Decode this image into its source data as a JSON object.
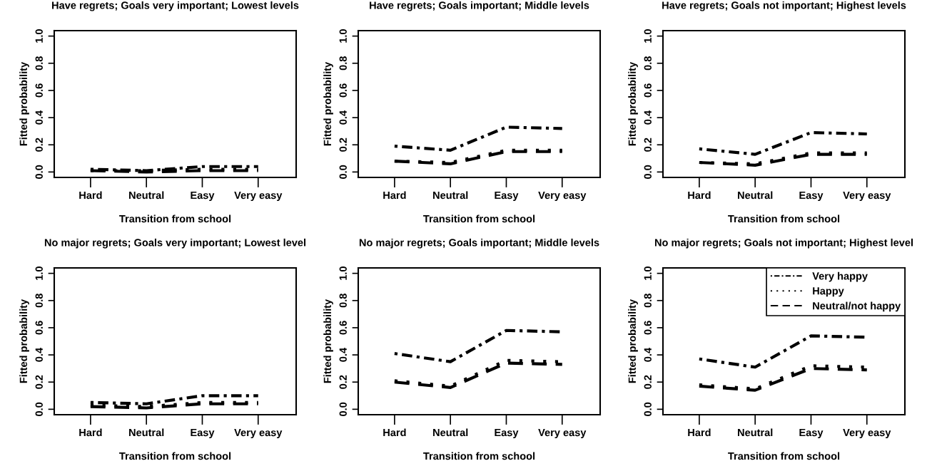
{
  "chart_data": [
    {
      "type": "line",
      "title": "Have regrets; Goals very important; Lowest levels",
      "xlabel": "Transition from school",
      "ylabel": "Fitted probability",
      "categories": [
        "Hard",
        "Neutral",
        "Easy",
        "Very easy"
      ],
      "ylim": [
        -0.04,
        1.04
      ],
      "yticks": [
        {
          "value": 0,
          "label": "0.0"
        },
        {
          "value": 0.2,
          "label": "0.2"
        },
        {
          "value": 0.4,
          "label": "0.4"
        },
        {
          "value": 0.6,
          "label": "0.6"
        },
        {
          "value": 0.8,
          "label": "0.8"
        },
        {
          "value": 1,
          "label": "1.0"
        }
      ],
      "grid": false,
      "legend": false,
      "series": [
        {
          "color": "#000000",
          "line_style": "dashdot",
          "values": [
            0.02,
            0.01,
            0.04,
            0.04
          ]
        },
        {
          "color": "#000000",
          "line_style": "dotted",
          "values": [
            0.01,
            0.01,
            0.02,
            0.02
          ]
        },
        {
          "color": "#000000",
          "line_style": "dashed",
          "values": [
            0.01,
            0.0,
            0.01,
            0.01
          ]
        }
      ]
    },
    {
      "type": "line",
      "title": "Have regrets; Goals important; Middle levels",
      "xlabel": "Transition from school",
      "ylabel": "Fitted probability",
      "categories": [
        "Hard",
        "Neutral",
        "Easy",
        "Very easy"
      ],
      "ylim": [
        -0.04,
        1.04
      ],
      "yticks": [
        {
          "value": 0,
          "label": "0.0"
        },
        {
          "value": 0.2,
          "label": "0.2"
        },
        {
          "value": 0.4,
          "label": "0.4"
        },
        {
          "value": 0.6,
          "label": "0.6"
        },
        {
          "value": 0.8,
          "label": "0.8"
        },
        {
          "value": 1,
          "label": "1.0"
        }
      ],
      "grid": false,
      "legend": false,
      "series": [
        {
          "color": "#000000",
          "line_style": "dashdot",
          "values": [
            0.19,
            0.16,
            0.33,
            0.32
          ]
        },
        {
          "color": "#000000",
          "line_style": "dotted",
          "values": [
            0.08,
            0.07,
            0.16,
            0.16
          ]
        },
        {
          "color": "#000000",
          "line_style": "dashed",
          "values": [
            0.08,
            0.06,
            0.15,
            0.15
          ]
        }
      ]
    },
    {
      "type": "line",
      "title": "Have regrets; Goals not important; Highest levels",
      "xlabel": "Transition from school",
      "ylabel": "Fitted probability",
      "categories": [
        "Hard",
        "Neutral",
        "Easy",
        "Very easy"
      ],
      "ylim": [
        -0.04,
        1.04
      ],
      "yticks": [
        {
          "value": 0,
          "label": "0.0"
        },
        {
          "value": 0.2,
          "label": "0.2"
        },
        {
          "value": 0.4,
          "label": "0.4"
        },
        {
          "value": 0.6,
          "label": "0.6"
        },
        {
          "value": 0.8,
          "label": "0.8"
        },
        {
          "value": 1,
          "label": "1.0"
        }
      ],
      "grid": false,
      "legend": false,
      "series": [
        {
          "color": "#000000",
          "line_style": "dashdot",
          "values": [
            0.17,
            0.13,
            0.29,
            0.28
          ]
        },
        {
          "color": "#000000",
          "line_style": "dotted",
          "values": [
            0.07,
            0.06,
            0.14,
            0.14
          ]
        },
        {
          "color": "#000000",
          "line_style": "dashed",
          "values": [
            0.07,
            0.05,
            0.13,
            0.13
          ]
        }
      ]
    },
    {
      "type": "line",
      "title": "No major regrets; Goals very important; Lowest level",
      "xlabel": "Transition from school",
      "ylabel": "Fitted probability",
      "categories": [
        "Hard",
        "Neutral",
        "Easy",
        "Very easy"
      ],
      "ylim": [
        -0.04,
        1.04
      ],
      "yticks": [
        {
          "value": 0,
          "label": "0.0"
        },
        {
          "value": 0.2,
          "label": "0.2"
        },
        {
          "value": 0.4,
          "label": "0.4"
        },
        {
          "value": 0.6,
          "label": "0.6"
        },
        {
          "value": 0.8,
          "label": "0.8"
        },
        {
          "value": 1,
          "label": "1.0"
        }
      ],
      "grid": false,
      "legend": false,
      "series": [
        {
          "color": "#000000",
          "line_style": "dashdot",
          "values": [
            0.05,
            0.04,
            0.1,
            0.1
          ]
        },
        {
          "color": "#000000",
          "line_style": "dotted",
          "values": [
            0.03,
            0.02,
            0.05,
            0.05
          ]
        },
        {
          "color": "#000000",
          "line_style": "dashed",
          "values": [
            0.02,
            0.01,
            0.04,
            0.04
          ]
        }
      ]
    },
    {
      "type": "line",
      "title": "No major regrets; Goals important; Middle levels",
      "xlabel": "Transition from school",
      "ylabel": "Fitted probability",
      "categories": [
        "Hard",
        "Neutral",
        "Easy",
        "Very easy"
      ],
      "ylim": [
        -0.04,
        1.04
      ],
      "yticks": [
        {
          "value": 0,
          "label": "0.0"
        },
        {
          "value": 0.2,
          "label": "0.2"
        },
        {
          "value": 0.4,
          "label": "0.4"
        },
        {
          "value": 0.6,
          "label": "0.6"
        },
        {
          "value": 0.8,
          "label": "0.8"
        },
        {
          "value": 1,
          "label": "1.0"
        }
      ],
      "grid": false,
      "legend": false,
      "series": [
        {
          "color": "#000000",
          "line_style": "dashdot",
          "values": [
            0.41,
            0.35,
            0.58,
            0.57
          ]
        },
        {
          "color": "#000000",
          "line_style": "dotted",
          "values": [
            0.21,
            0.17,
            0.36,
            0.35
          ]
        },
        {
          "color": "#000000",
          "line_style": "dashed",
          "values": [
            0.2,
            0.16,
            0.34,
            0.33
          ]
        }
      ]
    },
    {
      "type": "line",
      "title": "No major regrets; Goals not important; Highest level",
      "xlabel": "Transition from school",
      "ylabel": "Fitted probability",
      "categories": [
        "Hard",
        "Neutral",
        "Easy",
        "Very easy"
      ],
      "ylim": [
        -0.04,
        1.04
      ],
      "yticks": [
        {
          "value": 0,
          "label": "0.0"
        },
        {
          "value": 0.2,
          "label": "0.2"
        },
        {
          "value": 0.4,
          "label": "0.4"
        },
        {
          "value": 0.6,
          "label": "0.6"
        },
        {
          "value": 0.8,
          "label": "0.8"
        },
        {
          "value": 1,
          "label": "1.0"
        }
      ],
      "grid": false,
      "legend": "top right",
      "series": [
        {
          "name": "Very happy",
          "color": "#000000",
          "line_style": "dashdot",
          "values": [
            0.37,
            0.31,
            0.54,
            0.53
          ]
        },
        {
          "name": "Happy",
          "color": "#000000",
          "line_style": "dotted",
          "values": [
            0.18,
            0.15,
            0.32,
            0.31
          ]
        },
        {
          "name": "Neutral/not happy",
          "color": "#000000",
          "line_style": "dashed",
          "values": [
            0.17,
            0.14,
            0.3,
            0.29
          ]
        }
      ]
    }
  ]
}
